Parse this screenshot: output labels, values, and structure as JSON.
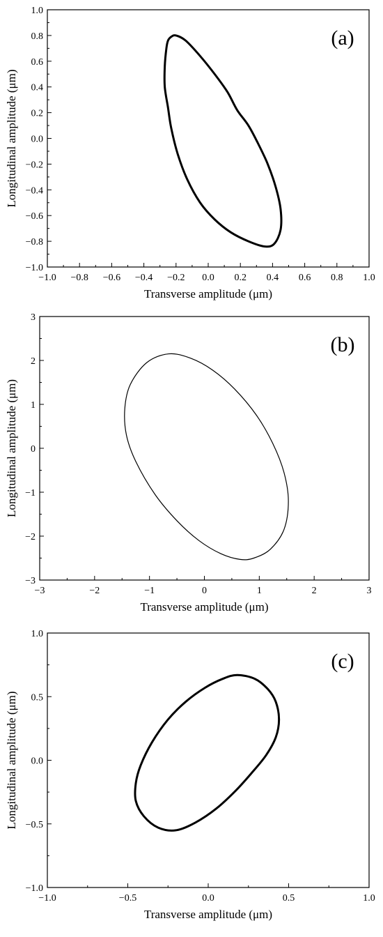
{
  "chart_data": [
    {
      "type": "line",
      "panel_label": "(a)",
      "xlabel": "Transverse amplitude (μm)",
      "ylabel": "Longitudinal amplitude (μm)",
      "xlim": [
        -1.0,
        1.0
      ],
      "ylim": [
        -1.0,
        1.0
      ],
      "xticks": [
        -1.0,
        -0.8,
        -0.6,
        -0.4,
        -0.2,
        0.0,
        0.2,
        0.4,
        0.6,
        0.8,
        1.0
      ],
      "yticks": [
        -1.0,
        -0.8,
        -0.6,
        -0.4,
        -0.2,
        0.0,
        0.2,
        0.4,
        0.6,
        0.8,
        1.0
      ],
      "xtick_labels": [
        "−1.0",
        "−0.8",
        "−0.6",
        "−0.4",
        "−0.2",
        "0.0",
        "0.2",
        "0.4",
        "0.6",
        "0.8",
        "1.0"
      ],
      "ytick_labels": [
        "−1.0",
        "−0.8",
        "−0.6",
        "−0.4",
        "−0.2",
        "0.0",
        "0.2",
        "0.4",
        "0.6",
        "0.8",
        "1.0"
      ],
      "grid": false,
      "line_width": 3,
      "series": [
        {
          "x": [
            -0.2,
            -0.14,
            -0.05,
            0.04,
            0.12,
            0.18,
            0.25,
            0.31,
            0.37,
            0.42,
            0.45,
            0.45,
            0.41,
            0.35,
            0.25,
            0.14,
            0.04,
            -0.05,
            -0.13,
            -0.19,
            -0.23,
            -0.25,
            -0.27,
            -0.27,
            -0.26,
            -0.25,
            -0.23,
            -0.2
          ],
          "y": [
            0.8,
            0.76,
            0.64,
            0.5,
            0.36,
            0.22,
            0.1,
            -0.04,
            -0.2,
            -0.38,
            -0.55,
            -0.71,
            -0.82,
            -0.84,
            -0.8,
            -0.73,
            -0.63,
            -0.5,
            -0.32,
            -0.12,
            0.08,
            0.24,
            0.4,
            0.56,
            0.7,
            0.76,
            0.79,
            0.8
          ]
        }
      ]
    },
    {
      "type": "line",
      "panel_label": "(b)",
      "xlabel": "Transverse amplitude (μm)",
      "ylabel": "Longitudinal amplitude (μm)",
      "xlim": [
        -3,
        3
      ],
      "ylim": [
        -3,
        3
      ],
      "xticks": [
        -3,
        -2,
        -1,
        0,
        1,
        2,
        3
      ],
      "yticks": [
        -3,
        -2,
        -1,
        0,
        1,
        2,
        3
      ],
      "xtick_labels": [
        "−3",
        "−2",
        "−1",
        "0",
        "1",
        "2",
        "3"
      ],
      "ytick_labels": [
        "−3",
        "−2",
        "−1",
        "0",
        "1",
        "2",
        "3"
      ],
      "grid": false,
      "line_width": 1.2,
      "series": [
        {
          "x": [
            -0.65,
            -0.25,
            0.15,
            0.55,
            0.95,
            1.25,
            1.45,
            1.53,
            1.45,
            1.2,
            0.9,
            0.65,
            0.3,
            -0.1,
            -0.5,
            -0.9,
            -1.25,
            -1.42,
            -1.45,
            -1.35,
            -1.05,
            -0.65
          ],
          "y": [
            2.15,
            2.05,
            1.78,
            1.35,
            0.75,
            0.1,
            -0.55,
            -1.2,
            -1.85,
            -2.3,
            -2.5,
            -2.53,
            -2.4,
            -2.1,
            -1.65,
            -1.05,
            -0.3,
            0.3,
            0.9,
            1.45,
            1.95,
            2.15
          ]
        }
      ]
    },
    {
      "type": "line",
      "panel_label": "(c)",
      "xlabel": "Transverse amplitude (μm)",
      "ylabel": "Longitudinal amplitude (μm)",
      "xlim": [
        -1.0,
        1.0
      ],
      "ylim": [
        -1.0,
        1.0
      ],
      "xticks": [
        -1.0,
        -0.5,
        0.0,
        0.5,
        1.0
      ],
      "yticks": [
        -1.0,
        -0.5,
        0.0,
        0.5,
        1.0
      ],
      "xtick_labels": [
        "−1.0",
        "−0.5",
        "0.0",
        "0.5",
        "1.0"
      ],
      "ytick_labels": [
        "−1.0",
        "−0.5",
        "0.0",
        "0.5",
        "1.0"
      ],
      "grid": false,
      "line_width": 3,
      "series": [
        {
          "x": [
            0.18,
            0.29,
            0.37,
            0.42,
            0.44,
            0.42,
            0.36,
            0.27,
            0.17,
            0.05,
            -0.08,
            -0.2,
            -0.31,
            -0.4,
            -0.45,
            -0.45,
            -0.42,
            -0.35,
            -0.25,
            -0.14,
            -0.02,
            0.09,
            0.18
          ],
          "y": [
            0.67,
            0.64,
            0.56,
            0.46,
            0.32,
            0.18,
            0.04,
            -0.1,
            -0.24,
            -0.38,
            -0.49,
            -0.55,
            -0.53,
            -0.44,
            -0.32,
            -0.18,
            -0.04,
            0.14,
            0.32,
            0.46,
            0.57,
            0.64,
            0.67
          ]
        }
      ]
    }
  ]
}
